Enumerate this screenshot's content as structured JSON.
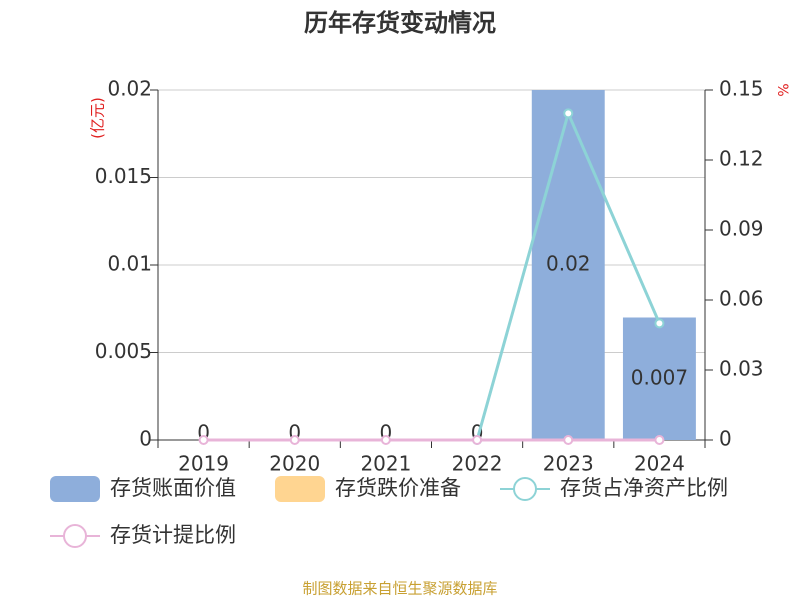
{
  "chart_data": {
    "type": "bar-line",
    "title": "历年存货变动情况",
    "y_label": "(亿元)",
    "y2_label": "%",
    "source": "制图数据来自恒生聚源数据库",
    "categories": [
      "2019",
      "2020",
      "2021",
      "2022",
      "2023",
      "2024"
    ],
    "series": [
      {
        "name": "存货账面价值",
        "type": "bar",
        "color": "#8eaedb",
        "values": [
          0,
          0,
          0,
          0,
          0.02,
          0.007
        ]
      },
      {
        "name": "存货跌价准备",
        "type": "bar",
        "color": "#ffd591",
        "values": [
          null,
          null,
          null,
          null,
          null,
          null
        ]
      },
      {
        "name": "存货占净资产比例",
        "type": "line",
        "axis": "y2",
        "color": "#8dd3d6",
        "values": [
          null,
          null,
          null,
          0,
          0.14,
          0.05
        ]
      },
      {
        "name": "存货计提比例",
        "type": "line",
        "axis": "y2",
        "color": "#e8b4d8",
        "values": [
          0,
          0,
          0,
          0,
          0,
          0
        ]
      }
    ],
    "ylim": [
      0,
      0.02
    ],
    "yticks": [
      0,
      0.005,
      0.01,
      0.015,
      0.02
    ],
    "y2lim": [
      0,
      0.15
    ],
    "y2ticks": [
      0,
      0.03,
      0.06,
      0.09,
      0.12,
      0.15
    ],
    "grid": true
  }
}
